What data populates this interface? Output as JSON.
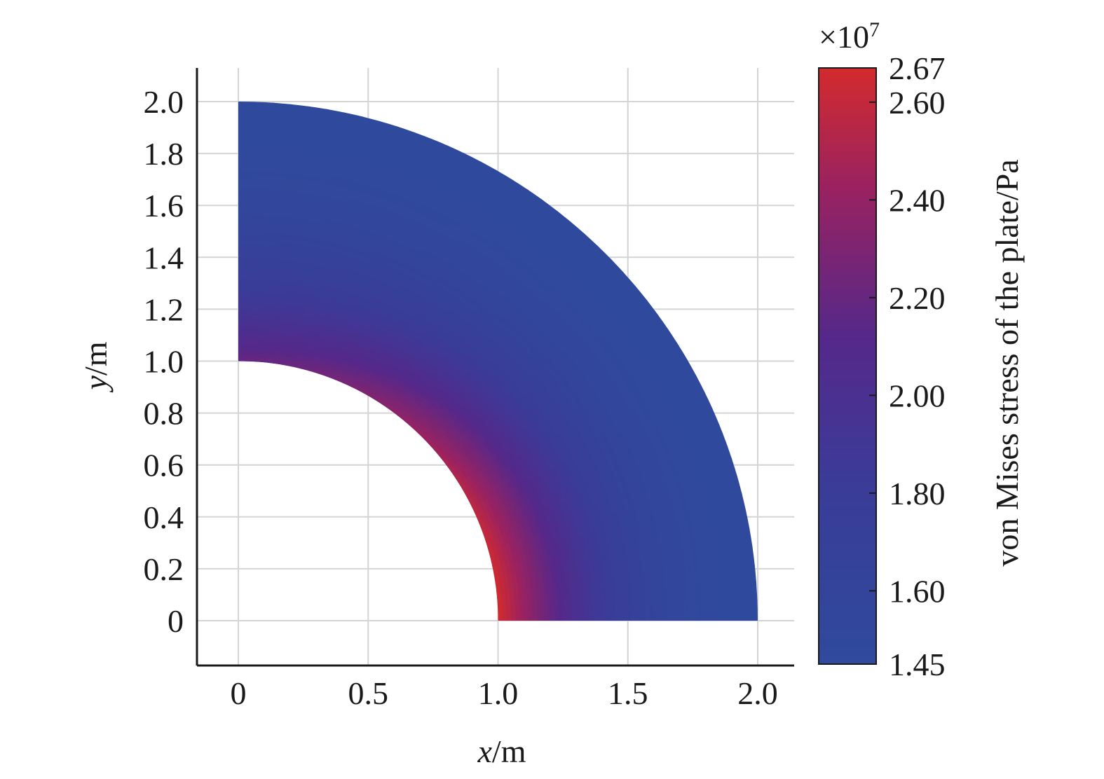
{
  "chart_data": {
    "type": "heatmap",
    "title": "",
    "xlabel": {
      "var": "x",
      "unit": "/m"
    },
    "ylabel": {
      "var": "y",
      "unit": "/m"
    },
    "xlim": [
      -0.16,
      2.14
    ],
    "ylim": [
      -0.17,
      2.13
    ],
    "xticks": [
      {
        "value": 0,
        "label": "0"
      },
      {
        "value": 0.5,
        "label": "0.5"
      },
      {
        "value": 1.0,
        "label": "1.0"
      },
      {
        "value": 1.5,
        "label": "1.5"
      },
      {
        "value": 2.0,
        "label": "2.0"
      }
    ],
    "yticks": [
      {
        "value": 0,
        "label": "0"
      },
      {
        "value": 0.2,
        "label": "0.2"
      },
      {
        "value": 0.4,
        "label": "0.4"
      },
      {
        "value": 0.6,
        "label": "0.6"
      },
      {
        "value": 0.8,
        "label": "0.8"
      },
      {
        "value": 1.0,
        "label": "1.0"
      },
      {
        "value": 1.2,
        "label": "1.2"
      },
      {
        "value": 1.4,
        "label": "1.4"
      },
      {
        "value": 1.6,
        "label": "1.6"
      },
      {
        "value": 1.8,
        "label": "1.8"
      },
      {
        "value": 2.0,
        "label": "2.0"
      }
    ],
    "grid": true,
    "domain": {
      "shape": "quarter annulus",
      "inner_radius": 1.0,
      "outer_radius": 2.0,
      "center": [
        0,
        0
      ]
    },
    "field": {
      "description_model": "stress decreases with radius, highest at inner edge, peak along x-axis",
      "stress_at_inner_radius_on_x_axis": 2.67,
      "stress_at_inner_radius_on_y_axis": 2.2,
      "stress_at_outer_radius": 1.45
    },
    "colorbar": {
      "label": "von Mises stress of the plate/Pa",
      "multiplier": "×10",
      "multiplier_exponent": "7",
      "min": 1.45,
      "max": 2.67,
      "ticks": [
        {
          "value": 2.67,
          "label": "2.67"
        },
        {
          "value": 2.6,
          "label": "2.60"
        },
        {
          "value": 2.4,
          "label": "2.40"
        },
        {
          "value": 2.2,
          "label": "2.20"
        },
        {
          "value": 2.0,
          "label": "2.00"
        },
        {
          "value": 1.8,
          "label": "1.80"
        },
        {
          "value": 1.6,
          "label": "1.60"
        },
        {
          "value": 1.45,
          "label": "1.45"
        }
      ],
      "colors": [
        "#2f4a9c",
        "#4a2a8c",
        "#8c2268",
        "#d02a2e"
      ]
    },
    "grid_color": "#d4d4d4"
  }
}
